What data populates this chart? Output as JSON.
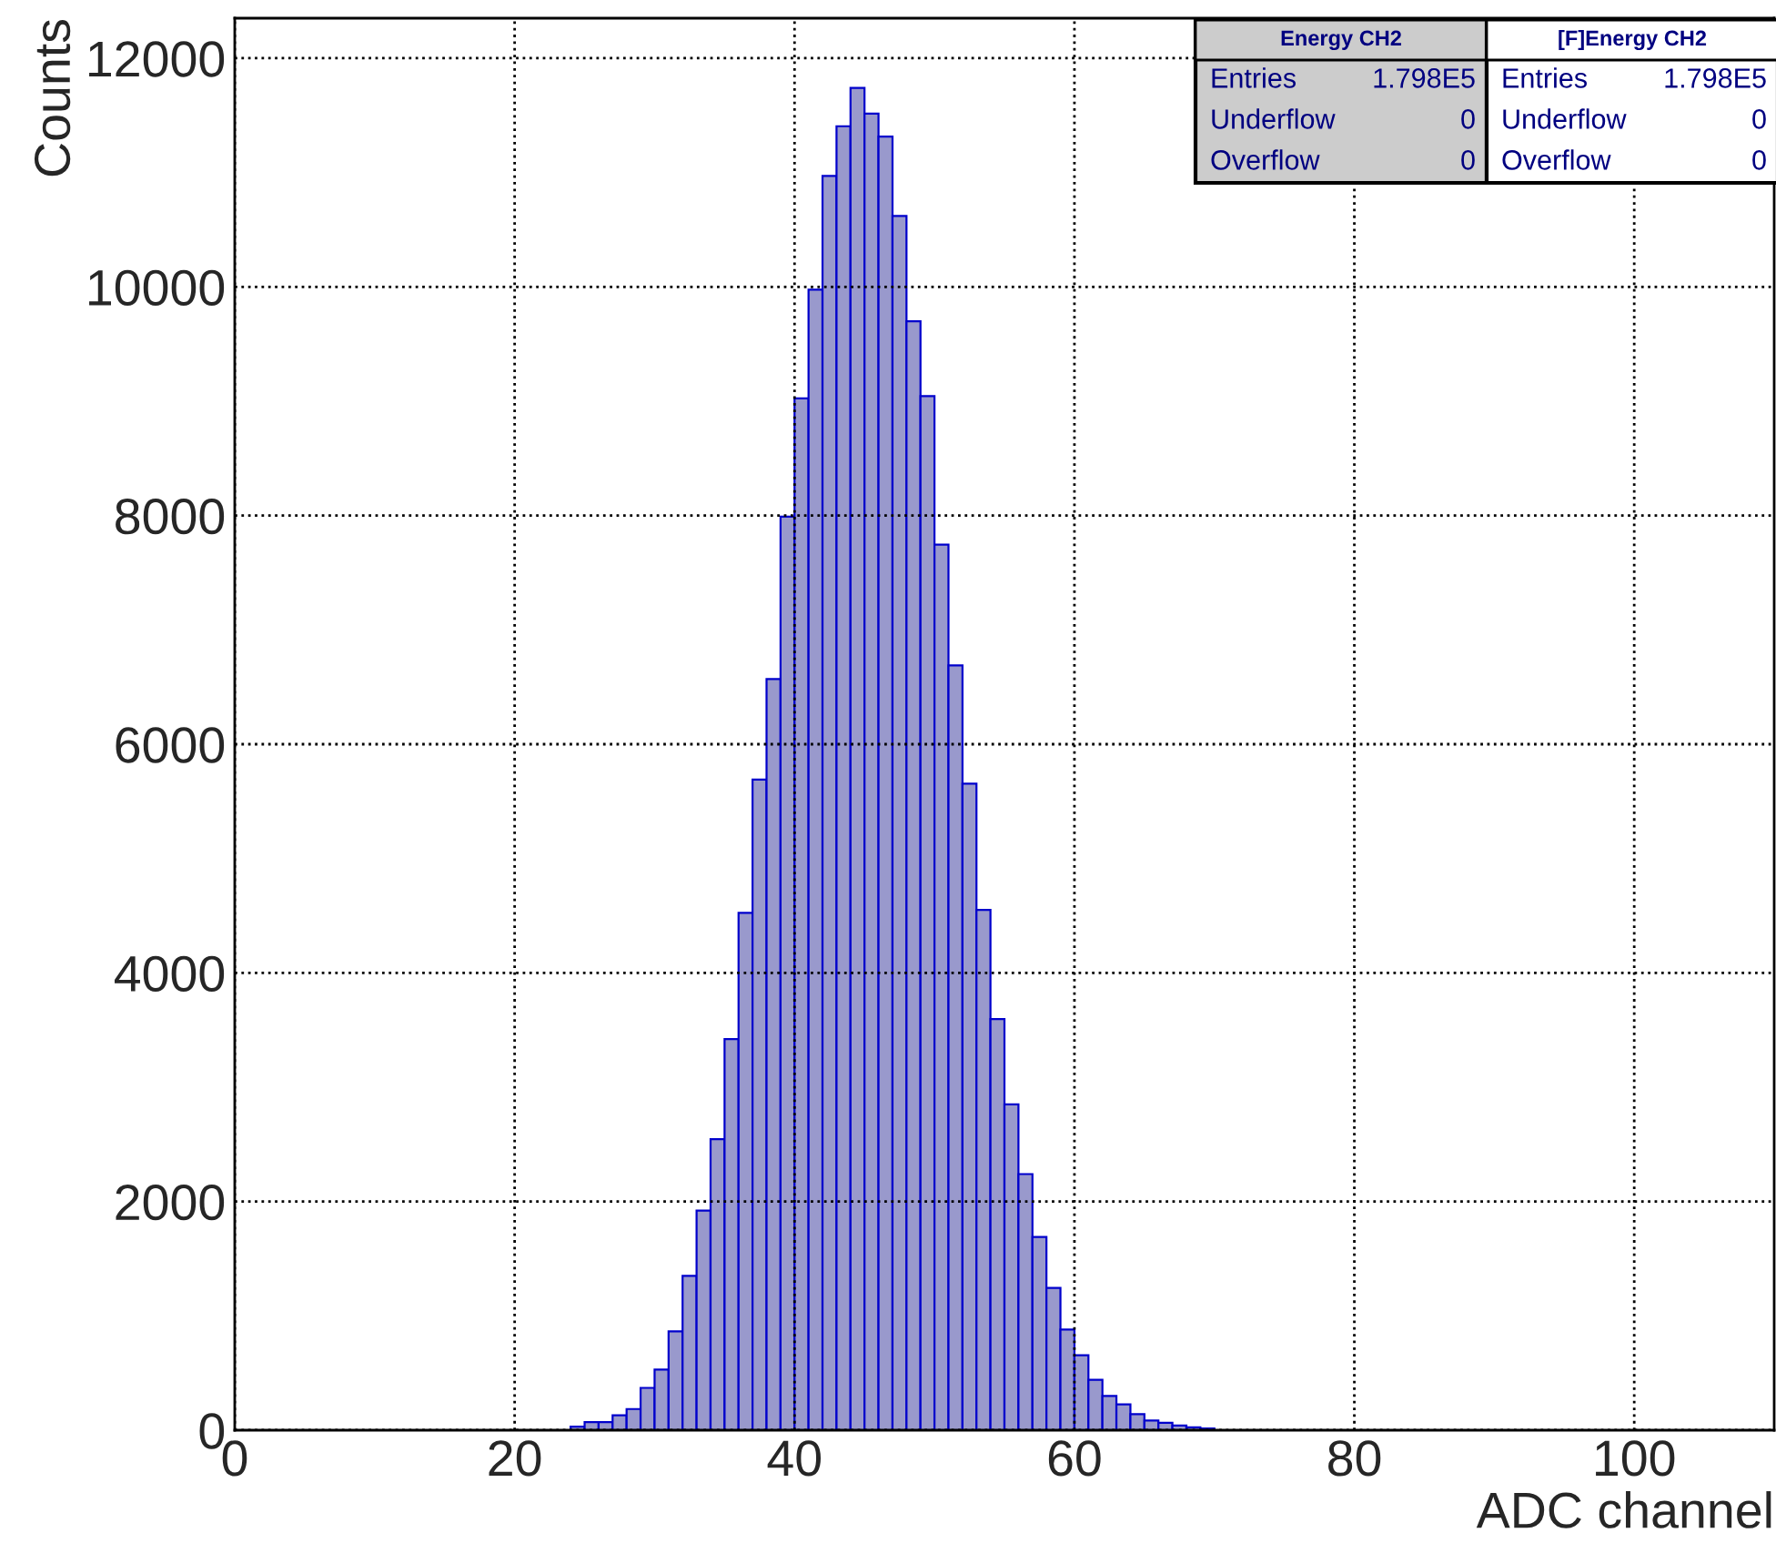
{
  "chart_data": {
    "type": "histogram",
    "xlabel": "ADC channel",
    "ylabel": "Counts",
    "bins": [
      0,
      1,
      2,
      3,
      4,
      5,
      6,
      7,
      8,
      9,
      10,
      11,
      12,
      13,
      14,
      15,
      16,
      17,
      18,
      19,
      20,
      21,
      22,
      23,
      24,
      25,
      26,
      27,
      28,
      29,
      30,
      31,
      32,
      33,
      34,
      35,
      36,
      37,
      38,
      39,
      40,
      41,
      42,
      43,
      44,
      45,
      46,
      47,
      48,
      49,
      50,
      51,
      52,
      53,
      54,
      55,
      56,
      57,
      58,
      59,
      60,
      61,
      62,
      63,
      64,
      65,
      66,
      67,
      68,
      69,
      70,
      71,
      72,
      73,
      74,
      75,
      76,
      77,
      78,
      79,
      80,
      81,
      82,
      83,
      84,
      85,
      86,
      87,
      88,
      89,
      90,
      91,
      92,
      93,
      94,
      95,
      96,
      97,
      98,
      99,
      100,
      101,
      102,
      103,
      104,
      105,
      106,
      107,
      108,
      109,
      110
    ],
    "values": [
      0,
      0,
      0,
      0,
      0,
      0,
      0,
      0,
      0,
      0,
      0,
      0,
      0,
      0,
      0,
      0,
      0,
      0,
      0,
      0,
      0,
      0,
      0,
      0,
      30,
      70,
      70,
      130,
      185,
      370,
      530,
      865,
      1350,
      1920,
      2545,
      3420,
      4525,
      5690,
      6570,
      7990,
      9025,
      9975,
      10970,
      11405,
      11740,
      11515,
      11315,
      10620,
      9700,
      9045,
      7745,
      6690,
      5655,
      4550,
      3595,
      2850,
      2240,
      1690,
      1245,
      880,
      655,
      440,
      300,
      225,
      140,
      85,
      65,
      40,
      25,
      15,
      0,
      0,
      0,
      0,
      0,
      0,
      0,
      0,
      0,
      0,
      0,
      0,
      0,
      0,
      0,
      0,
      0,
      0,
      0,
      0,
      0,
      0,
      0,
      0,
      0,
      0,
      0,
      0,
      0,
      0,
      0,
      0,
      0,
      0,
      0,
      0,
      0,
      0,
      0,
      0
    ],
    "color": "#9999cc",
    "xlim": [
      0,
      110
    ],
    "xticks": [
      0,
      20,
      40,
      60,
      80,
      100
    ],
    "ylim": [
      0,
      12350
    ],
    "yticks": [
      0,
      2000,
      4000,
      6000,
      8000,
      10000,
      12000
    ],
    "grid": true,
    "annotations": [
      "Energy CH2",
      "Entries",
      "1.798E5",
      "Underflow",
      "0",
      "Overflow",
      "0",
      "[F]Energy CH2",
      "Entries",
      "1.798E5",
      "Underflow",
      "0",
      "Overflow",
      "0"
    ]
  }
}
